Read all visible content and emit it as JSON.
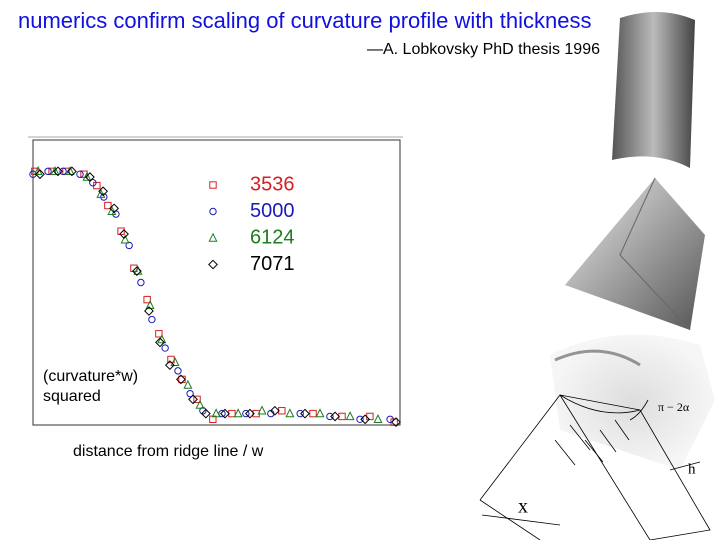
{
  "chart_data": {
    "type": "scatter",
    "title": "numerics confirm scaling of curvature profile with thickness",
    "subtitle": "—A. Lobkovsky PhD thesis 1996",
    "y_label": [
      "(curvature*w)",
      "squared"
    ],
    "x_label": "distance from ridge line / w",
    "xlim": [
      0,
      10
    ],
    "ylim": [
      0,
      1
    ],
    "series": [
      {
        "name": "3536",
        "color": "#d42020",
        "marker": "square",
        "x": [
          0.05,
          0.52,
          0.9,
          1.39,
          1.74,
          2.04,
          2.4,
          2.75,
          3.11,
          3.43,
          3.76,
          4.06,
          4.47,
          4.9,
          5.42,
          6.08,
          6.78,
          7.63,
          8.42,
          9.18,
          9.84
        ],
        "values": [
          0.89,
          0.89,
          0.89,
          0.88,
          0.84,
          0.77,
          0.68,
          0.55,
          0.44,
          0.32,
          0.23,
          0.16,
          0.09,
          0.02,
          0.04,
          0.04,
          0.05,
          0.04,
          0.03,
          0.03,
          0.01
        ]
      },
      {
        "name": "5000",
        "color": "#1a1ab8",
        "marker": "circle",
        "x": [
          0,
          0.41,
          0.82,
          1.28,
          1.63,
          1.93,
          2.26,
          2.62,
          2.94,
          3.24,
          3.6,
          3.95,
          4.28,
          4.63,
          5.15,
          5.8,
          6.48,
          7.28,
          8.09,
          8.91,
          9.73
        ],
        "values": [
          0.88,
          0.89,
          0.89,
          0.88,
          0.85,
          0.8,
          0.74,
          0.63,
          0.5,
          0.37,
          0.27,
          0.19,
          0.11,
          0.05,
          0.04,
          0.04,
          0.04,
          0.04,
          0.03,
          0.02,
          0.02
        ]
      },
      {
        "name": "6124",
        "color": "#1e7d1e",
        "marker": "triangle",
        "x": [
          0.14,
          0.6,
          1.01,
          1.47,
          1.85,
          2.15,
          2.51,
          2.86,
          3.19,
          3.51,
          3.87,
          4.22,
          4.55,
          4.99,
          5.59,
          6.24,
          7.0,
          7.82,
          8.64,
          9.4
        ],
        "values": [
          0.89,
          0.89,
          0.89,
          0.87,
          0.81,
          0.75,
          0.65,
          0.54,
          0.42,
          0.3,
          0.22,
          0.14,
          0.07,
          0.04,
          0.04,
          0.05,
          0.04,
          0.04,
          0.03,
          0.02
        ]
      },
      {
        "name": "7071",
        "color": "#000000",
        "marker": "diamond",
        "x": [
          0.19,
          0.68,
          1.06,
          1.55,
          1.91,
          2.21,
          2.48,
          2.83,
          3.16,
          3.46,
          3.73,
          4.03,
          4.36,
          4.71,
          5.23,
          5.91,
          6.59,
          7.41,
          8.23,
          9.05,
          9.89
        ],
        "values": [
          0.88,
          0.89,
          0.89,
          0.87,
          0.82,
          0.76,
          0.67,
          0.54,
          0.4,
          0.29,
          0.21,
          0.16,
          0.09,
          0.04,
          0.04,
          0.04,
          0.05,
          0.04,
          0.03,
          0.02,
          0.01
        ]
      }
    ]
  },
  "figure_labels": {
    "angle": "π − 2α",
    "thickness": "h",
    "length": "x"
  }
}
